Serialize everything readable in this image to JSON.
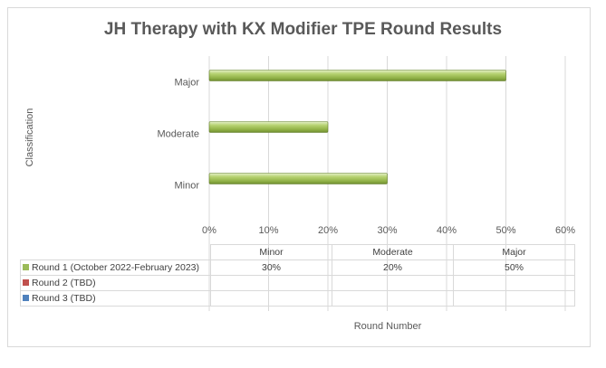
{
  "chart_data": {
    "type": "bar",
    "orientation": "horizontal",
    "title": "JH Therapy with KX Modifier TPE Round Results",
    "ylabel": "Classification",
    "xlabel": "Round Number",
    "categories": [
      "Minor",
      "Moderate",
      "Major"
    ],
    "x_ticks": [
      "0%",
      "10%",
      "20%",
      "30%",
      "40%",
      "50%",
      "60%"
    ],
    "xlim": [
      0,
      60
    ],
    "grid": "vertical",
    "legend": "data-table",
    "series": [
      {
        "name": "Round 1 (October 2022-February 2023)",
        "values": [
          30,
          20,
          50
        ],
        "labels": [
          "30%",
          "20%",
          "50%"
        ],
        "color": "#9bbb59"
      },
      {
        "name": "Round 2 (TBD)",
        "values": [
          null,
          null,
          null
        ],
        "labels": [
          "",
          "",
          ""
        ],
        "color": "#c0504d"
      },
      {
        "name": "Round 3 (TBD)",
        "values": [
          null,
          null,
          null
        ],
        "labels": [
          "",
          "",
          ""
        ],
        "color": "#4f81bd"
      }
    ]
  }
}
